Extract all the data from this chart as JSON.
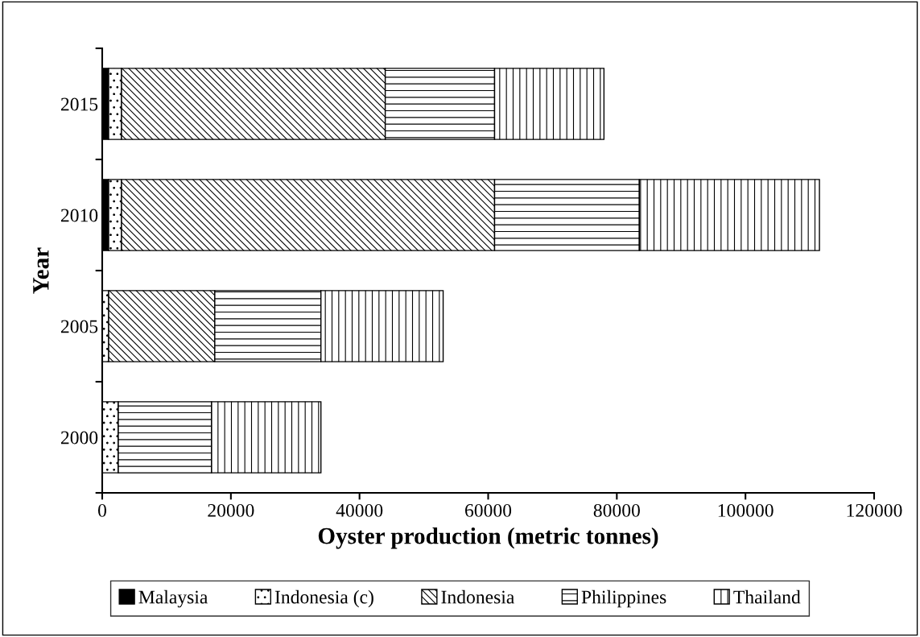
{
  "chart_data": {
    "type": "bar",
    "orientation": "horizontal",
    "stacked": true,
    "xlabel": "Oyster production (metric tonnes)",
    "ylabel": "Year",
    "categories": [
      "2015",
      "2010",
      "2005",
      "2000"
    ],
    "series": [
      {
        "name": "Malaysia",
        "color": "#000000",
        "values": [
          1000,
          1000,
          0,
          0
        ]
      },
      {
        "name": "Indonesia (c)",
        "color": "#000000",
        "values": [
          2000,
          2000,
          1000,
          2500
        ]
      },
      {
        "name": "Indonesia",
        "color": "#000000",
        "values": [
          41000,
          58000,
          16500,
          0
        ]
      },
      {
        "name": "Philippines",
        "color": "#000000",
        "values": [
          17000,
          22500,
          16500,
          14500
        ]
      },
      {
        "name": "Thailand",
        "color": "#000000",
        "values": [
          17000,
          28000,
          19000,
          17000
        ]
      }
    ],
    "xlim": [
      0,
      120000
    ],
    "xticks": [
      0,
      20000,
      40000,
      60000,
      80000,
      100000,
      120000
    ],
    "grid": false,
    "legend": "bottom"
  }
}
